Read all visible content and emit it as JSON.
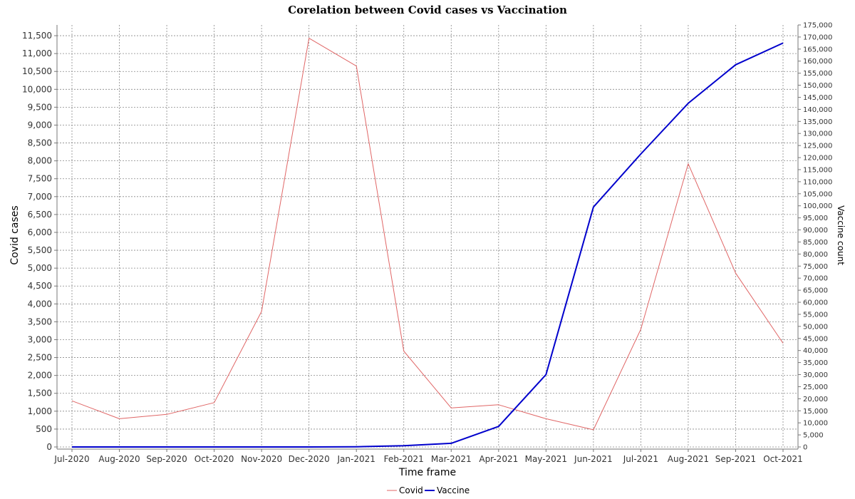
{
  "chart_data": {
    "type": "line",
    "title": "Corelation between Covid cases vs Vaccination",
    "xlabel": "Time frame",
    "ylabel": "Covid cases",
    "y2label": "Vaccine count",
    "categories": [
      "Jul-2020",
      "Aug-2020",
      "Sep-2020",
      "Oct-2020",
      "Nov-2020",
      "Dec-2020",
      "Jan-2021",
      "Feb-2021",
      "Mar-2021",
      "Apr-2021",
      "May-2021",
      "Jun-2021",
      "Jul-2021",
      "Aug-2021",
      "Sep-2021",
      "Oct-2021"
    ],
    "ylim": [
      0,
      11800
    ],
    "y2lim": [
      0,
      175000
    ],
    "yticks": [
      0,
      500,
      1000,
      1500,
      2000,
      2500,
      3000,
      3500,
      4000,
      4500,
      5000,
      5500,
      6000,
      6500,
      7000,
      7500,
      8000,
      8500,
      9000,
      9500,
      10000,
      10500,
      11000,
      11500
    ],
    "y2ticks": [
      0,
      5000,
      10000,
      15000,
      20000,
      25000,
      30000,
      35000,
      40000,
      45000,
      50000,
      55000,
      60000,
      65000,
      70000,
      75000,
      80000,
      85000,
      90000,
      95000,
      100000,
      105000,
      110000,
      115000,
      120000,
      125000,
      130000,
      135000,
      140000,
      145000,
      150000,
      155000,
      160000,
      165000,
      170000,
      175000
    ],
    "grid": true,
    "legend_position": "bottom-center",
    "series": [
      {
        "name": "Covid",
        "axis": "left",
        "color": "#e06666",
        "values": [
          1290,
          790,
          910,
          1240,
          3790,
          11430,
          10650,
          2680,
          1090,
          1180,
          790,
          480,
          3290,
          7920,
          4860,
          2900
        ]
      },
      {
        "name": "Vaccine",
        "axis": "right",
        "color": "#0000cc",
        "values": [
          0,
          0,
          0,
          0,
          0,
          0,
          100,
          500,
          1500,
          8500,
          30000,
          99500,
          121500,
          142500,
          158500,
          167500
        ]
      }
    ]
  }
}
